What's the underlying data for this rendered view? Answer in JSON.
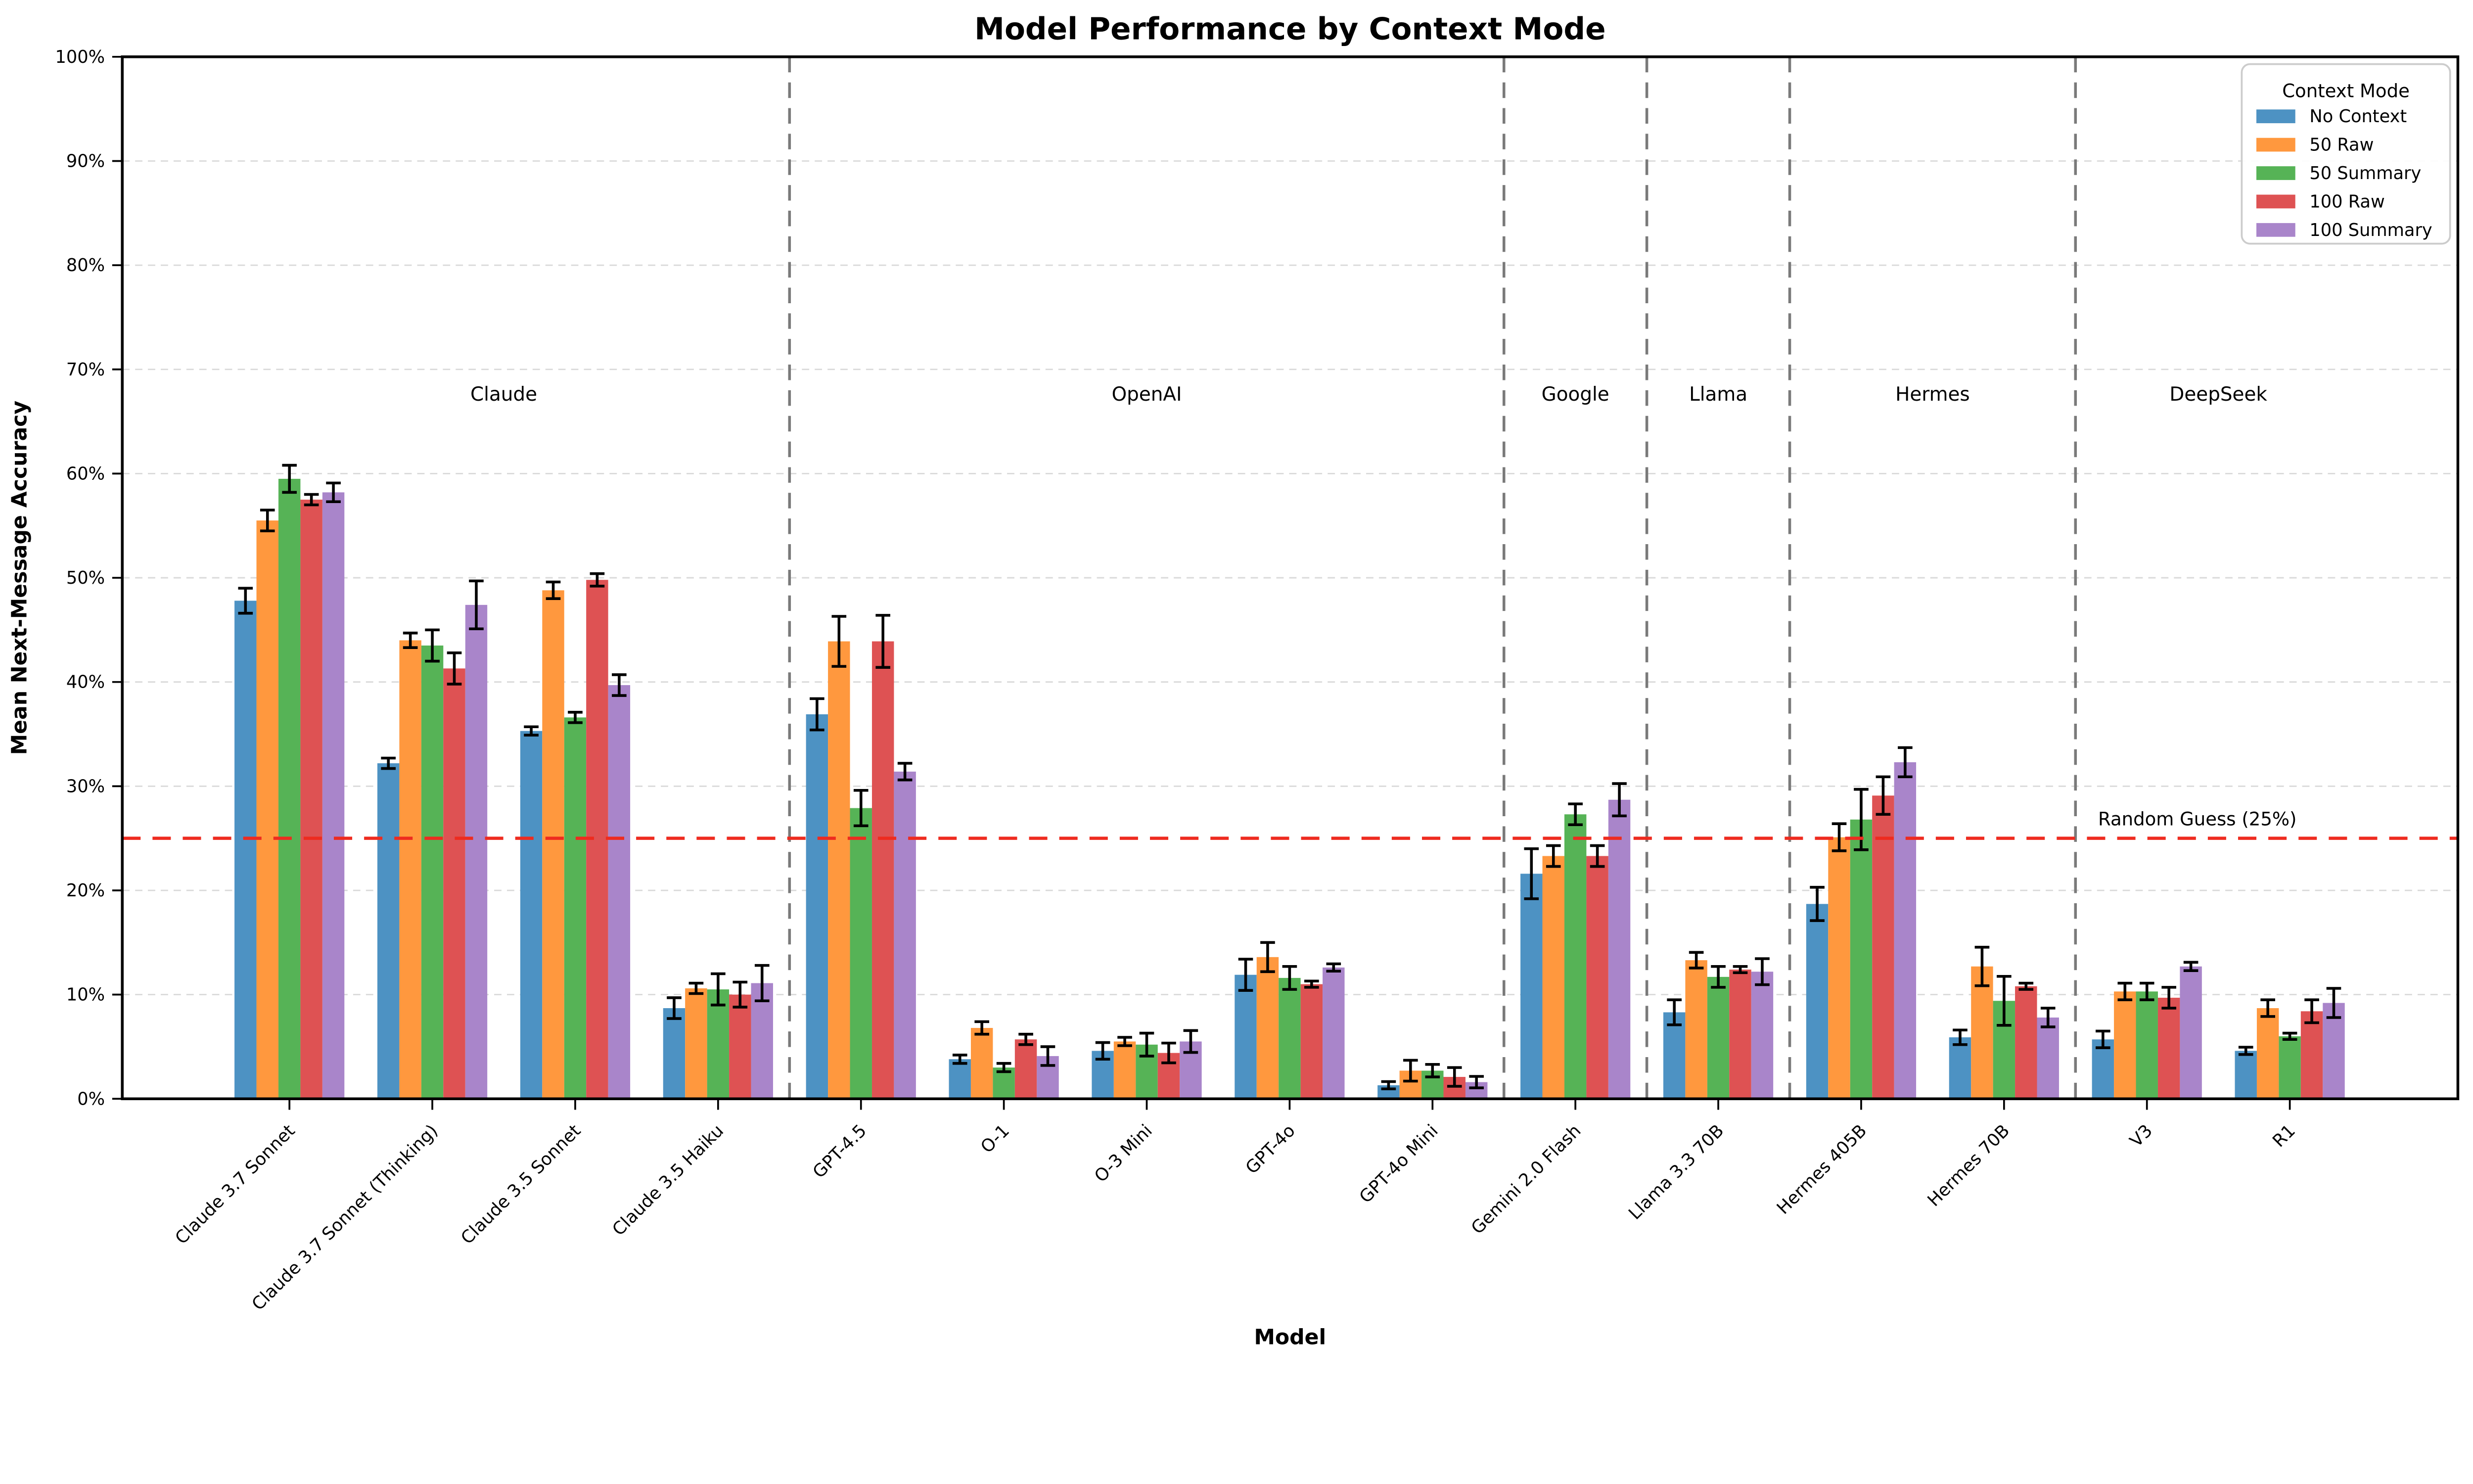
{
  "title": "Model Performance by Context Mode",
  "axes": {
    "x_label": "Model",
    "y_label": "Mean Next-Message Accuracy",
    "y_tick_labels": [
      "0%",
      "10%",
      "20%",
      "30%",
      "40%",
      "50%",
      "60%",
      "70%",
      "80%",
      "90%",
      "100%"
    ],
    "y_min": 0,
    "y_max": 100,
    "grid": "horizontal-dashed"
  },
  "legend": {
    "title": "Context Mode",
    "position": "top-right"
  },
  "annotations": {
    "random_guess": {
      "label": "Random Guess (25%)",
      "value": 25,
      "color": "#ee2b1f"
    }
  },
  "colors": {
    "background": "#ffffff",
    "frame": "#000000",
    "gridline": "#d9d9d9",
    "separator": "#7a7a7a",
    "section_label": "#8a8a8a",
    "error_bar": "#000000",
    "legend_border": "#cccccc"
  },
  "chart_data": {
    "type": "bar",
    "title": "Model Performance by Context Mode",
    "xlabel": "Model",
    "ylabel": "Mean Next-Message Accuracy",
    "ylim": [
      0,
      100
    ],
    "legend_position": "top-right",
    "grid": "horizontal dashed lines every 10%",
    "categories": [
      "Claude 3.7 Sonnet",
      "Claude 3.7 Sonnet (Thinking)",
      "Claude 3.5 Sonnet",
      "Claude 3.5 Haiku",
      "GPT-4.5",
      "O-1",
      "O-3 Mini",
      "GPT-4o",
      "GPT-4o Mini",
      "Gemini 2.0 Flash",
      "Llama 3.3 70B",
      "Hermes 405B",
      "Hermes 70B",
      "V3",
      "R1"
    ],
    "groups": [
      {
        "label": "Claude",
        "start": 0,
        "end": 3
      },
      {
        "label": "OpenAI",
        "start": 4,
        "end": 8
      },
      {
        "label": "Google",
        "start": 9,
        "end": 9
      },
      {
        "label": "Llama",
        "start": 10,
        "end": 10
      },
      {
        "label": "Hermes",
        "start": 11,
        "end": 12
      },
      {
        "label": "DeepSeek",
        "start": 13,
        "end": 14
      }
    ],
    "series": [
      {
        "name": "No Context",
        "color": "#4D92C3",
        "values": [
          47.8,
          32.2,
          35.3,
          8.7,
          36.9,
          3.8,
          4.6,
          11.9,
          1.3,
          21.6,
          8.3,
          18.7,
          5.9,
          5.7,
          4.6
        ],
        "errors": [
          1.2,
          0.5,
          0.4,
          1.0,
          1.5,
          0.4,
          0.8,
          1.5,
          0.35,
          2.4,
          1.2,
          1.6,
          0.7,
          0.8,
          0.35
        ]
      },
      {
        "name": "50 Raw",
        "color": "#FF983E",
        "values": [
          55.5,
          44.0,
          48.8,
          10.6,
          43.9,
          6.8,
          5.5,
          13.6,
          2.7,
          23.3,
          13.3,
          25.1,
          12.7,
          10.3,
          8.7
        ],
        "errors": [
          1.0,
          0.7,
          0.8,
          0.5,
          2.4,
          0.6,
          0.4,
          1.4,
          1.0,
          1.0,
          0.75,
          1.3,
          1.85,
          0.8,
          0.8
        ]
      },
      {
        "name": "50 Summary",
        "color": "#56B356",
        "values": [
          59.5,
          43.5,
          36.6,
          10.5,
          27.9,
          3.0,
          5.2,
          11.6,
          2.7,
          27.3,
          11.7,
          26.8,
          9.4,
          10.3,
          6.0
        ],
        "errors": [
          1.3,
          1.5,
          0.5,
          1.5,
          1.7,
          0.4,
          1.1,
          1.1,
          0.6,
          1.0,
          1.0,
          2.9,
          2.35,
          0.8,
          0.3
        ]
      },
      {
        "name": "100 Raw",
        "color": "#DE5253",
        "values": [
          57.5,
          41.3,
          49.8,
          10.0,
          43.9,
          5.7,
          4.4,
          11.0,
          2.1,
          23.3,
          12.4,
          29.1,
          10.8,
          9.7,
          8.4
        ],
        "errors": [
          0.5,
          1.5,
          0.6,
          1.2,
          2.5,
          0.5,
          0.95,
          0.3,
          0.9,
          1.0,
          0.3,
          1.8,
          0.3,
          1.0,
          1.1
        ]
      },
      {
        "name": "100 Summary",
        "color": "#A985CA",
        "values": [
          58.2,
          47.4,
          39.7,
          11.1,
          31.4,
          4.1,
          5.5,
          12.6,
          1.6,
          28.7,
          12.2,
          32.3,
          7.8,
          12.7,
          9.2
        ],
        "errors": [
          0.9,
          2.3,
          1.0,
          1.7,
          0.8,
          0.9,
          1.05,
          0.35,
          0.55,
          1.55,
          1.25,
          1.4,
          0.9,
          0.4,
          1.4
        ]
      }
    ]
  }
}
